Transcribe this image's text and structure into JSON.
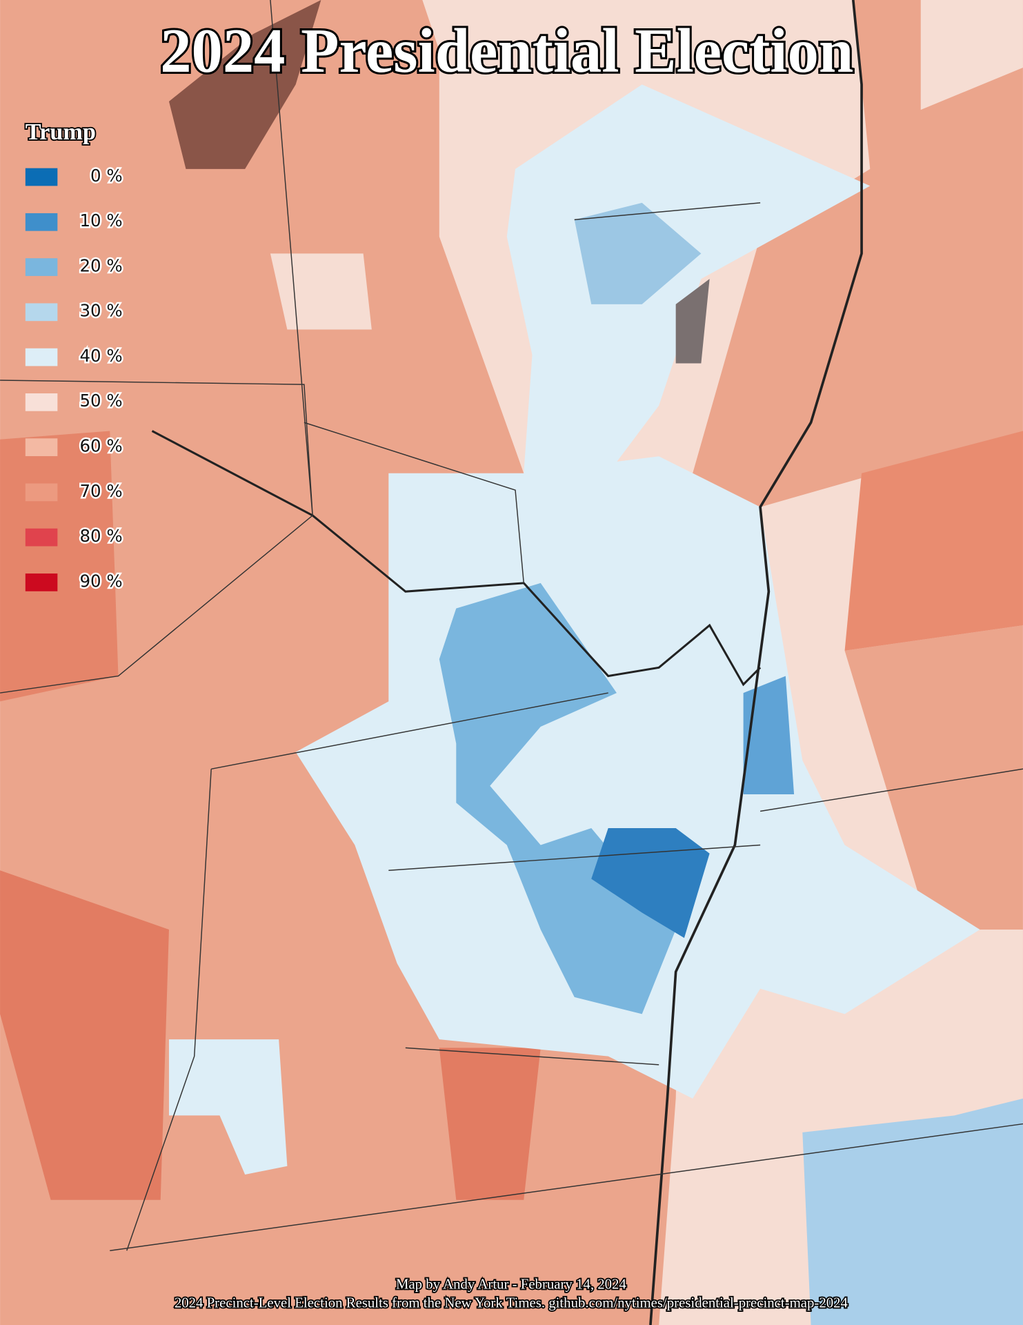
{
  "title": "2024 Presidential Election",
  "legend": {
    "title": "Trump",
    "items": [
      {
        "label": "0 %",
        "color": "#0b6db5"
      },
      {
        "label": "10 %",
        "color": "#3f8fcb"
      },
      {
        "label": "20 %",
        "color": "#7ab6de"
      },
      {
        "label": "30 %",
        "color": "#b5d7ec"
      },
      {
        "label": "40 %",
        "color": "#ddeef7"
      },
      {
        "label": "50 %",
        "color": "#f8e0d8"
      },
      {
        "label": "60 %",
        "color": "#f3b9a3"
      },
      {
        "label": "70 %",
        "color": "#ec9a80"
      },
      {
        "label": "80 %",
        "color": "#e0434d"
      },
      {
        "label": "90 %",
        "color": "#cc0a1f"
      }
    ]
  },
  "credits": [
    "Map by Andy Artur - February 14, 2024",
    "2024 Precinct-Level Election Results from the New York Times. github.com/nytimes/presidential-precinct-map-2024"
  ]
}
